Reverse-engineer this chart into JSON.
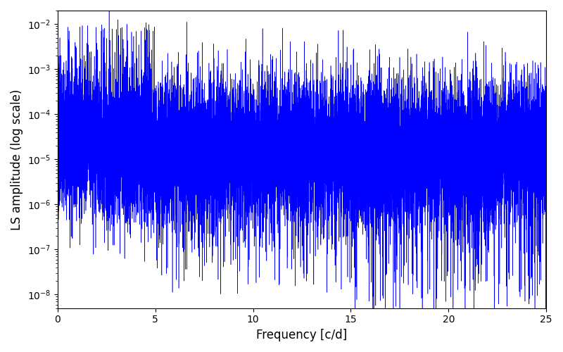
{
  "title": "",
  "xlabel": "Frequency [c/d]",
  "ylabel": "LS amplitude (log scale)",
  "xlim": [
    0,
    25
  ],
  "ylim": [
    5e-09,
    0.02
  ],
  "line_color": "#0000FF",
  "line_width": 0.4,
  "figsize": [
    8.0,
    5.0
  ],
  "dpi": 100,
  "freq_min": 0.0,
  "freq_max": 25.0,
  "n_points": 15000,
  "seed": 7,
  "background_color": "#ffffff"
}
